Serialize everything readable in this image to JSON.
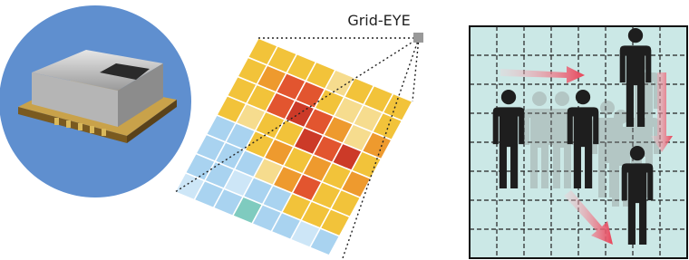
{
  "label": "Grid-EYE"
}
